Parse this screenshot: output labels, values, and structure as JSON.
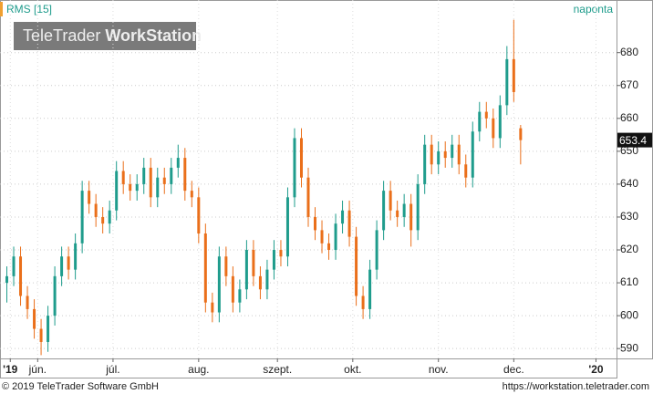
{
  "header": {
    "logo_light": "TeleTrader",
    "logo_bold": "WorkStation"
  },
  "footer": {
    "copyright": "© 2019 TeleTrader Software GmbH",
    "url": "https://workstation.teletrader.com"
  },
  "chart_data": {
    "type": "candlestick",
    "title": "RMS [15]",
    "period": "naponta",
    "up_color": "#1f9c8c",
    "down_color": "#ea6f1a",
    "grid": true,
    "xlim": [
      0,
      180
    ],
    "xticks": [
      {
        "value": 3,
        "label": "'19"
      },
      {
        "value": 11,
        "label": "jún."
      },
      {
        "value": 33,
        "label": "júl."
      },
      {
        "value": 58,
        "label": "aug."
      },
      {
        "value": 81,
        "label": "szept."
      },
      {
        "value": 103,
        "label": "okt."
      },
      {
        "value": 128,
        "label": "nov."
      },
      {
        "value": 150,
        "label": "dec."
      },
      {
        "value": 174,
        "label": "'20"
      }
    ],
    "ylim": [
      587,
      696
    ],
    "yticks": [
      590,
      600,
      610,
      620,
      630,
      640,
      650,
      660,
      670,
      680
    ],
    "x": [
      2,
      4,
      6,
      8,
      10,
      12,
      14,
      16,
      18,
      20,
      22,
      24,
      26,
      28,
      30,
      32,
      34,
      36,
      38,
      40,
      42,
      44,
      46,
      48,
      50,
      52,
      54,
      56,
      58,
      60,
      62,
      64,
      66,
      68,
      70,
      72,
      74,
      76,
      78,
      80,
      82,
      84,
      86,
      88,
      90,
      92,
      94,
      96,
      98,
      100,
      102,
      104,
      106,
      108,
      110,
      112,
      114,
      116,
      118,
      120,
      122,
      124,
      126,
      128,
      130,
      132,
      134,
      136,
      138,
      140,
      142,
      144,
      146,
      148,
      150,
      152
    ],
    "open": [
      610,
      612,
      618,
      606,
      602,
      596,
      592,
      600,
      612,
      618,
      614,
      622,
      638,
      634,
      630,
      628,
      632,
      644,
      640,
      638,
      640,
      645,
      636,
      642,
      640,
      645,
      648,
      638,
      636,
      625,
      604,
      601,
      618,
      612,
      604,
      608,
      620,
      612,
      608,
      614,
      620,
      618,
      636,
      654,
      642,
      630,
      626,
      622,
      620,
      628,
      632,
      624,
      606,
      602,
      614,
      626,
      638,
      632,
      630,
      634,
      626,
      640,
      652,
      646,
      650,
      648,
      652,
      646,
      642,
      656,
      662,
      660,
      654,
      664,
      678,
      657
    ],
    "high": [
      615,
      621,
      621,
      609,
      605,
      599,
      603,
      615,
      621,
      621,
      625,
      641,
      641,
      637,
      633,
      635,
      647,
      647,
      643,
      643,
      648,
      648,
      645,
      645,
      648,
      652,
      651,
      641,
      639,
      628,
      607,
      621,
      621,
      615,
      611,
      623,
      623,
      615,
      617,
      623,
      623,
      639,
      657,
      657,
      645,
      633,
      629,
      625,
      631,
      635,
      635,
      627,
      609,
      617,
      629,
      641,
      641,
      635,
      637,
      637,
      643,
      655,
      655,
      653,
      653,
      655,
      655,
      649,
      659,
      665,
      665,
      663,
      667,
      682,
      690,
      658
    ],
    "low": [
      604,
      609,
      603,
      599,
      593,
      588,
      589,
      597,
      609,
      611,
      611,
      619,
      631,
      627,
      625,
      625,
      629,
      637,
      635,
      635,
      637,
      633,
      633,
      637,
      637,
      642,
      635,
      633,
      622,
      601,
      598,
      598,
      609,
      601,
      601,
      605,
      609,
      605,
      605,
      611,
      615,
      615,
      633,
      639,
      627,
      623,
      619,
      617,
      617,
      625,
      621,
      603,
      599,
      599,
      611,
      623,
      629,
      627,
      627,
      621,
      623,
      637,
      643,
      643,
      645,
      645,
      643,
      639,
      639,
      653,
      657,
      651,
      651,
      661,
      665,
      646
    ],
    "close": [
      612,
      618,
      606,
      602,
      596,
      592,
      600,
      612,
      618,
      614,
      622,
      638,
      634,
      630,
      628,
      632,
      644,
      640,
      638,
      640,
      645,
      636,
      642,
      640,
      645,
      648,
      638,
      636,
      625,
      604,
      601,
      618,
      612,
      604,
      608,
      620,
      612,
      608,
      614,
      620,
      618,
      636,
      654,
      642,
      630,
      626,
      622,
      620,
      628,
      632,
      624,
      606,
      602,
      614,
      626,
      638,
      632,
      630,
      634,
      626,
      640,
      652,
      646,
      650,
      648,
      652,
      646,
      642,
      656,
      662,
      660,
      654,
      664,
      678,
      668,
      653.4
    ]
  }
}
